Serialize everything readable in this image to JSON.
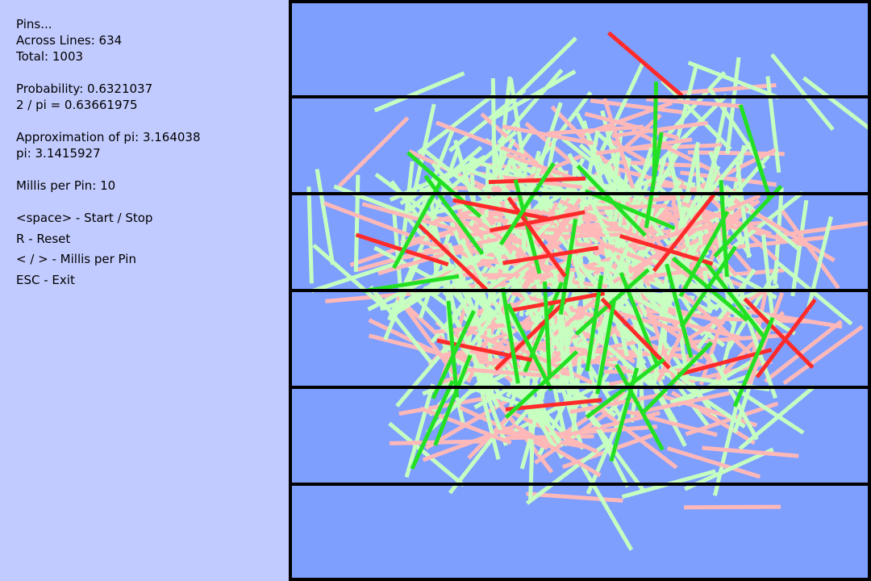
{
  "stats": {
    "pins_heading": "Pins...",
    "across_lines": "Across Lines: 634",
    "total": "Total: 1003",
    "probability": "Probability: 0.6321037",
    "two_over_pi": "2 / pi = 0.63661975",
    "approx_pi": "Approximation of pi: 3.164038",
    "pi": "pi: 3.1415927",
    "millis_per_pin": "Millis per Pin: 10"
  },
  "controls": [
    "<space> - Start / Stop",
    "R - Reset",
    "< / > - Millis per Pin",
    "ESC - Exit"
  ],
  "colors": {
    "panel_bg": "#c2cbff",
    "board_bg": "#7f9fff",
    "border": "#000000",
    "crossing_recent": "#22e022",
    "crossing_old": "#c6ffc0",
    "noncross_recent": "#ff2a2a",
    "noncross_old": "#ffb8b8"
  }
}
